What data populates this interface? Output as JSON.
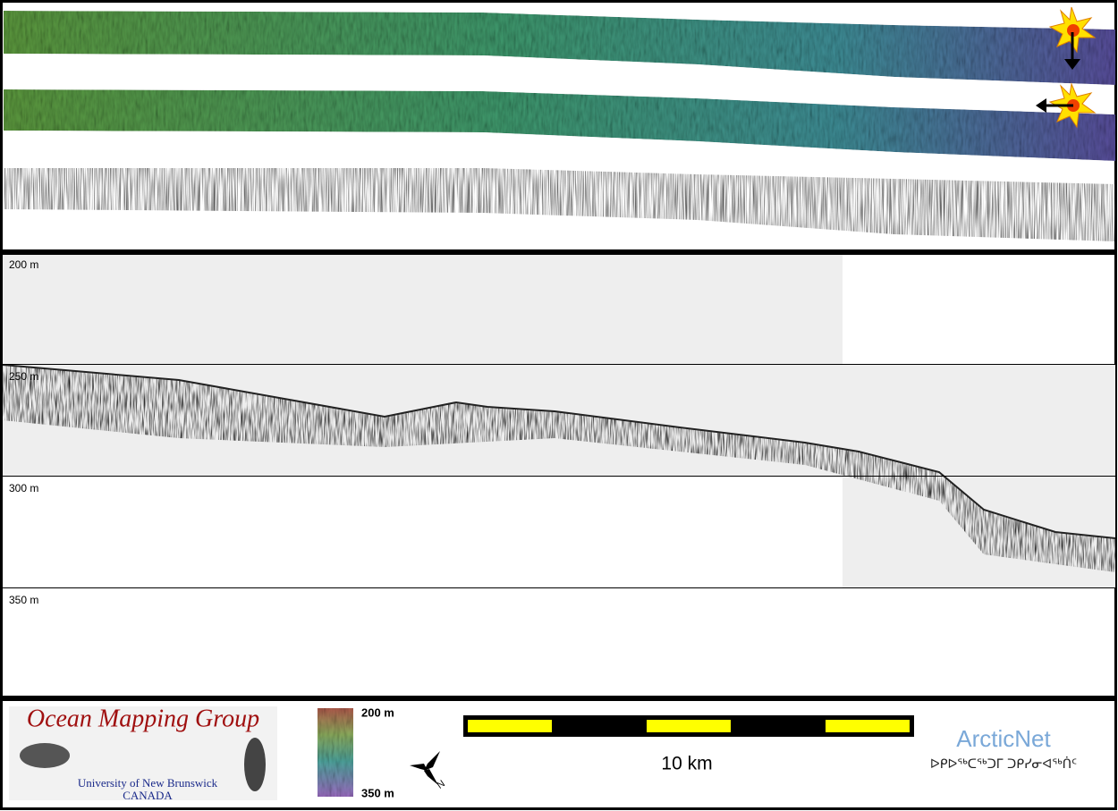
{
  "depth_labels": [
    "200 m",
    "250 m",
    "300 m",
    "350 m"
  ],
  "logo": {
    "title": "Ocean Mapping Group",
    "university": "University of New Brunswick",
    "country": "CANADA"
  },
  "colorbar": {
    "top": "200 m",
    "bottom": "350 m"
  },
  "scale_bar": {
    "label": "10 km"
  },
  "arcticnet": {
    "name": "ArcticNet",
    "subtitle": "ᐅᑭᐅᖅᑕᖅᑐᒥ ᑐᑭᓯᓂᐊᖅᑏᑦ"
  }
}
